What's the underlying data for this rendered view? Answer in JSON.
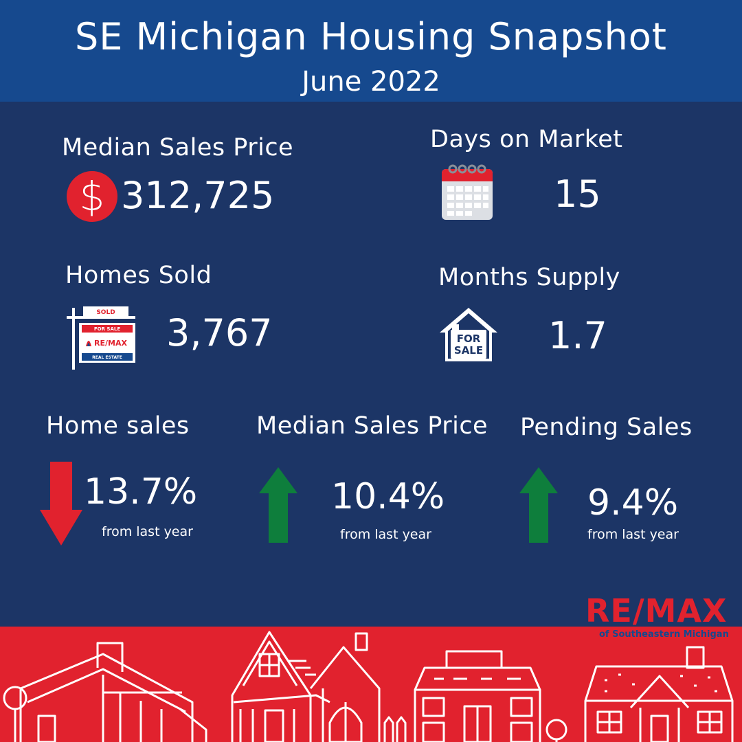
{
  "header": {
    "title": "SE Michigan Housing Snapshot",
    "subtitle": "June 2022"
  },
  "stats": {
    "median_price": {
      "label": "Median Sales Price",
      "value": "312,725",
      "icon": "dollar-icon"
    },
    "days_on_market": {
      "label": "Days on Market",
      "value": "15",
      "icon": "calendar-icon"
    },
    "homes_sold": {
      "label": "Homes Sold",
      "value": "3,767",
      "icon": "sold-sign-icon"
    },
    "months_supply": {
      "label": "Months Supply",
      "value": "1.7",
      "icon": "for-sale-house-icon"
    }
  },
  "changes": [
    {
      "label": "Home sales",
      "value": "13.7%",
      "note": "from last year",
      "direction": "down"
    },
    {
      "label": "Median Sales Price",
      "value": "10.4%",
      "note": "from last year",
      "direction": "up"
    },
    {
      "label": "Pending Sales",
      "value": "9.4%",
      "note": "from last year",
      "direction": "up"
    }
  ],
  "icons": {
    "sold_sign_top": "SOLD",
    "sold_sign_for_sale": "FOR SALE",
    "sold_sign_brand": "RE/MAX",
    "sold_sign_sub": "REAL ESTATE",
    "house_line1": "FOR",
    "house_line2": "SALE"
  },
  "brand": {
    "name": "RE/MAX",
    "tagline": "of Southeastern Michigan"
  },
  "colors": {
    "background": "#1c3566",
    "header": "#16498e",
    "accent_red": "#e1222e",
    "up_green": "#0e7e3c",
    "down_red": "#e1222e"
  }
}
